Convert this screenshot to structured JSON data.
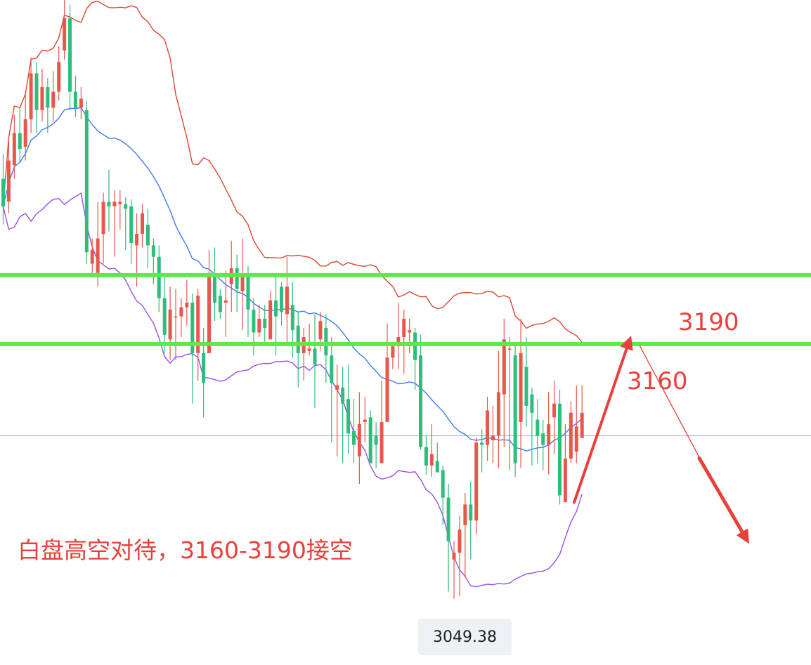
{
  "chart_data": {
    "type": "candlestick",
    "ylim": [
      3020,
      3310
    ],
    "colors": {
      "up": "#e8574b",
      "down": "#2ebd7b",
      "upper_band": "#d9472f",
      "middle_band": "#3b7bf0",
      "lower_band": "#9b4dea",
      "level_line": "#5ee84c",
      "reference_line": "#7fd3c0",
      "annotation": "#e8403a"
    },
    "levels": [
      {
        "value": 3190,
        "label": "3190"
      },
      {
        "value": 3160,
        "label": "3160"
      }
    ],
    "reference_price": 3120,
    "note": "白盘高空对待，3160-3190接空",
    "low_label": "3049.38",
    "candles": [
      [
        3232,
        3220,
        3243,
        3212
      ],
      [
        3222,
        3240,
        3248,
        3217
      ],
      [
        3238,
        3252,
        3260,
        3232
      ],
      [
        3252,
        3245,
        3263,
        3239
      ],
      [
        3246,
        3258,
        3270,
        3240
      ],
      [
        3258,
        3278,
        3285,
        3252
      ],
      [
        3278,
        3262,
        3283,
        3252
      ],
      [
        3262,
        3272,
        3280,
        3257
      ],
      [
        3272,
        3263,
        3276,
        3252
      ],
      [
        3263,
        3270,
        3279,
        3257
      ],
      [
        3270,
        3283,
        3290,
        3266
      ],
      [
        3288,
        3302,
        3311,
        3284
      ],
      [
        3302,
        3270,
        3308,
        3262
      ],
      [
        3270,
        3263,
        3277,
        3259
      ],
      [
        3263,
        3267,
        3272,
        3258
      ],
      [
        3262,
        3200,
        3266,
        3195
      ],
      [
        3195,
        3201,
        3206,
        3190
      ],
      [
        3191,
        3206,
        3222,
        3185
      ],
      [
        3208,
        3222,
        3226,
        3195
      ],
      [
        3222,
        3220,
        3236,
        3209
      ],
      [
        3220,
        3222,
        3227,
        3198
      ],
      [
        3221,
        3222,
        3227,
        3210
      ],
      [
        3221,
        3219,
        3224,
        3201
      ],
      [
        3220,
        3204,
        3223,
        3195
      ],
      [
        3203,
        3208,
        3217,
        3185
      ],
      [
        3208,
        3217,
        3221,
        3202
      ],
      [
        3212,
        3203,
        3219,
        3193
      ],
      [
        3203,
        3198,
        3206,
        3186
      ],
      [
        3198,
        3180,
        3203,
        3174
      ],
      [
        3180,
        3164,
        3189,
        3156
      ],
      [
        3162,
        3175,
        3185,
        3153
      ],
      [
        3172,
        3172,
        3184,
        3153
      ],
      [
        3172,
        3176,
        3180,
        3163
      ],
      [
        3176,
        3178,
        3188,
        3168
      ],
      [
        3178,
        3156,
        3182,
        3134
      ],
      [
        3156,
        3181,
        3184,
        3144
      ],
      [
        3156,
        3143,
        3167,
        3128
      ],
      [
        3156,
        3191,
        3201,
        3178
      ],
      [
        3190,
        3178,
        3202,
        3170
      ],
      [
        3181,
        3174,
        3184,
        3171
      ],
      [
        3178,
        3179,
        3192,
        3163
      ],
      [
        3186,
        3193,
        3205,
        3174
      ],
      [
        3193,
        3184,
        3199,
        3174
      ],
      [
        3183,
        3190,
        3206,
        3166
      ],
      [
        3190,
        3175,
        3194,
        3163
      ],
      [
        3175,
        3165,
        3180,
        3155
      ],
      [
        3165,
        3171,
        3177,
        3163
      ],
      [
        3171,
        3167,
        3177,
        3161
      ],
      [
        3162,
        3179,
        3183,
        3169
      ],
      [
        3179,
        3172,
        3190,
        3155
      ],
      [
        3185,
        3174,
        3187,
        3168
      ],
      [
        3173,
        3185,
        3198,
        3159
      ],
      [
        3177,
        3166,
        3187,
        3154
      ],
      [
        3168,
        3156,
        3174,
        3141
      ],
      [
        3156,
        3163,
        3167,
        3144
      ],
      [
        3157,
        3158,
        3169,
        3155
      ],
      [
        3158,
        3151,
        3173,
        3132
      ],
      [
        3162,
        3170,
        3174,
        3157
      ],
      [
        3167,
        3155,
        3173,
        3143
      ],
      [
        3155,
        3143,
        3163,
        3117
      ],
      [
        3140,
        3142,
        3151,
        3111
      ],
      [
        3141,
        3134,
        3150,
        3108
      ],
      [
        3136,
        3121,
        3151,
        3112
      ],
      [
        3122,
        3116,
        3136,
        3108
      ],
      [
        3111,
        3125,
        3139,
        3099
      ],
      [
        3126,
        3127,
        3137,
        3117
      ],
      [
        3128,
        3108,
        3131,
        3109
      ],
      [
        3120,
        3116,
        3126,
        3106
      ],
      [
        3108,
        3126,
        3144,
        3113
      ],
      [
        3126,
        3154,
        3169,
        3141
      ],
      [
        3154,
        3159,
        3160,
        3149
      ],
      [
        3159,
        3163,
        3178,
        3149
      ],
      [
        3163,
        3171,
        3175,
        3147
      ],
      [
        3165,
        3166,
        3171,
        3156
      ],
      [
        3165,
        3153,
        3167,
        3140
      ],
      [
        3155,
        3115,
        3164,
        3114
      ],
      [
        3115,
        3107,
        3120,
        3103
      ],
      [
        3107,
        3112,
        3125,
        3102
      ],
      [
        3109,
        3104,
        3117,
        3106
      ],
      [
        3105,
        3093,
        3107,
        3081
      ],
      [
        3093,
        3074,
        3099,
        3052
      ],
      [
        3066,
        3069,
        3074,
        3049
      ],
      [
        3069,
        3079,
        3085,
        3050
      ],
      [
        3081,
        3090,
        3095,
        3058
      ],
      [
        3090,
        3083,
        3100,
        3066
      ],
      [
        3083,
        3117,
        3119,
        3077
      ],
      [
        3117,
        3116,
        3123,
        3104
      ],
      [
        3116,
        3131,
        3137,
        3109
      ],
      [
        3118,
        3120,
        3133,
        3108
      ],
      [
        3120,
        3139,
        3157,
        3106
      ],
      [
        3138,
        3162,
        3171,
        3115
      ],
      [
        3158,
        3158,
        3163,
        3105
      ],
      [
        3155,
        3108,
        3159,
        3102
      ],
      [
        3126,
        3156,
        3171,
        3106
      ],
      [
        3150,
        3133,
        3163,
        3124
      ],
      [
        3138,
        3130,
        3141,
        3107
      ],
      [
        3127,
        3120,
        3136,
        3108
      ],
      [
        3121,
        3116,
        3127,
        3105
      ],
      [
        3116,
        3125,
        3139,
        3103
      ],
      [
        3128,
        3134,
        3144,
        3112
      ],
      [
        3134,
        3094,
        3140,
        3090
      ],
      [
        3091,
        3110,
        3125,
        3094
      ],
      [
        3110,
        3130,
        3135,
        3108
      ],
      [
        3113,
        3124,
        3142,
        3108
      ],
      [
        3119,
        3130,
        3142,
        3129
      ]
    ]
  }
}
